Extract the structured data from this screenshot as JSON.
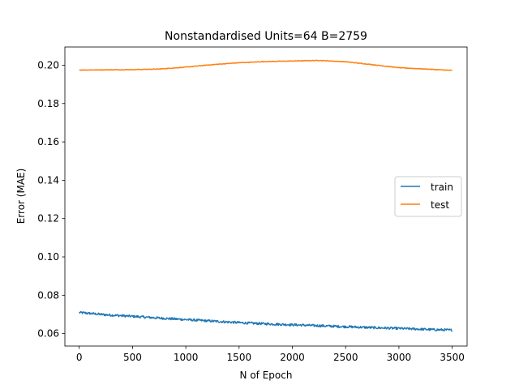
{
  "chart_data": {
    "type": "line",
    "title": "Nonstandardised Units=64 B=2759",
    "xlabel": "N of Epoch",
    "ylabel": "Error (MAE)",
    "xlim": [
      -135,
      3640
    ],
    "ylim": [
      0.0535,
      0.2095
    ],
    "xticks": [
      0,
      500,
      1000,
      1500,
      2000,
      2500,
      3000,
      3500
    ],
    "xtick_labels": [
      "0",
      "500",
      "1000",
      "1500",
      "2000",
      "2500",
      "3000",
      "3500"
    ],
    "yticks": [
      0.06,
      0.08,
      0.1,
      0.12,
      0.14,
      0.16,
      0.18,
      0.2
    ],
    "ytick_labels": [
      "0.06",
      "0.08",
      "0.10",
      "0.12",
      "0.14",
      "0.16",
      "0.18",
      "0.20"
    ],
    "grid": false,
    "legend_position": "center-right",
    "series": [
      {
        "name": "train",
        "color": "#1f77b4",
        "noise": 0.0006,
        "x": [
          0,
          250,
          500,
          750,
          1000,
          1250,
          1500,
          1750,
          2000,
          2250,
          2500,
          2750,
          3000,
          3250,
          3500
        ],
        "y": [
          0.071,
          0.0698,
          0.069,
          0.0681,
          0.0673,
          0.0665,
          0.0657,
          0.0651,
          0.0646,
          0.0641,
          0.0636,
          0.0631,
          0.0627,
          0.0622,
          0.0618
        ]
      },
      {
        "name": "test",
        "color": "#ff7f0e",
        "noise": 0.00015,
        "x": [
          0,
          250,
          500,
          750,
          1000,
          1250,
          1500,
          1750,
          2000,
          2250,
          2500,
          2750,
          3000,
          3250,
          3500
        ],
        "y": [
          0.1975,
          0.1976,
          0.1977,
          0.198,
          0.199,
          0.2003,
          0.2013,
          0.2019,
          0.2022,
          0.2025,
          0.2018,
          0.2003,
          0.1987,
          0.198,
          0.1973
        ]
      }
    ]
  }
}
